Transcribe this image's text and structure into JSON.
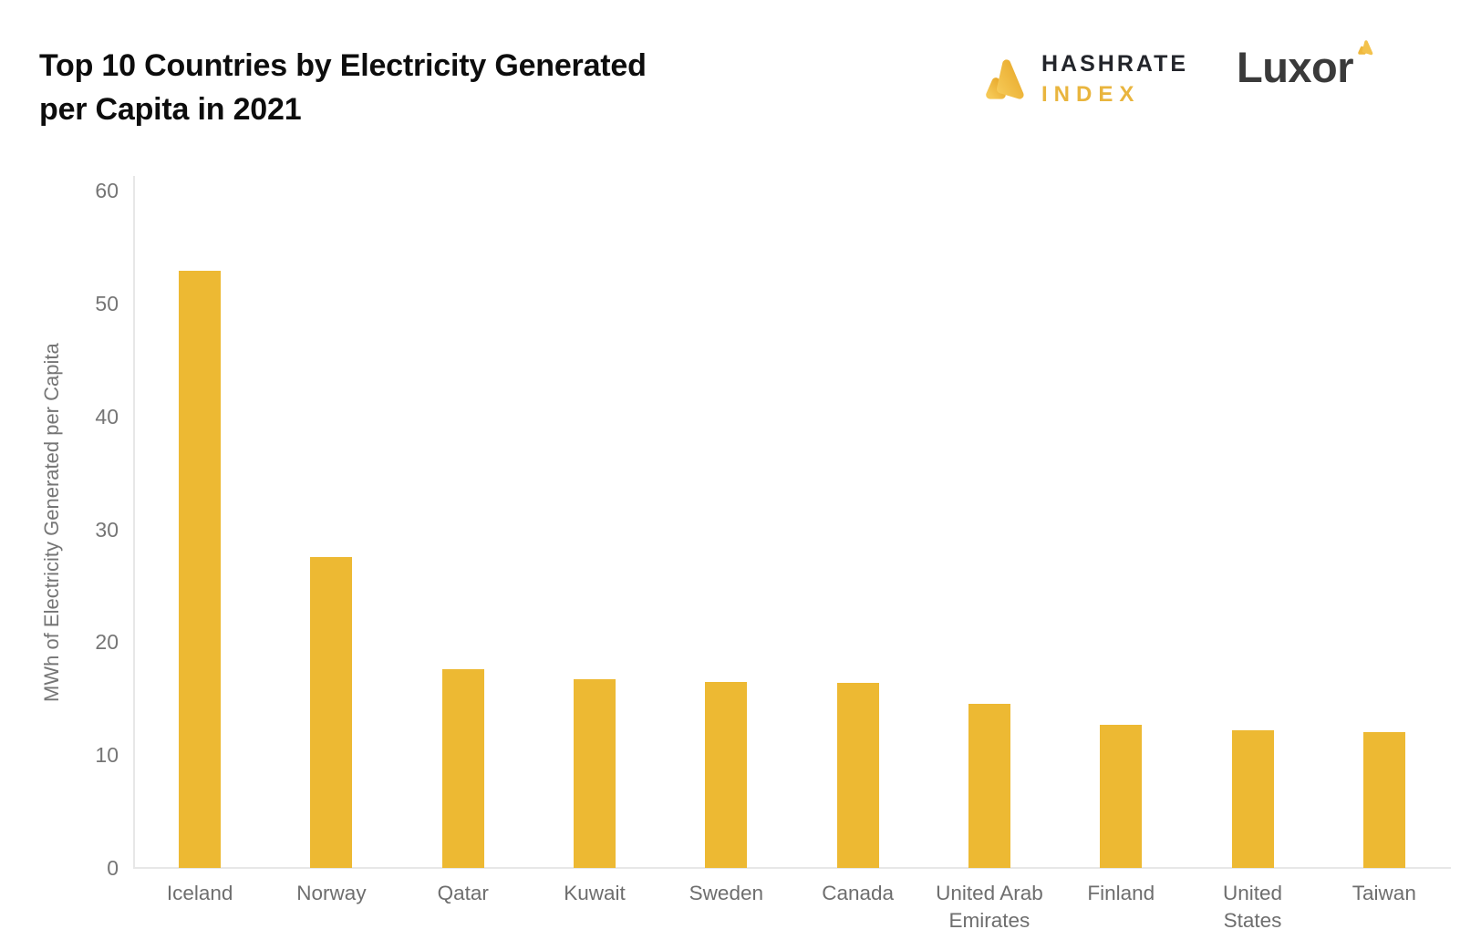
{
  "header": {
    "title_line1": "Top 10 Countries by Electricity Generated",
    "title_line2": "per Capita in 2021"
  },
  "logos": {
    "hashrate_line1": "HASHRATE",
    "hashrate_line2": "INDEX",
    "luxor": "Luxor"
  },
  "colors": {
    "bar": "#EDB933",
    "logo_gold_light": "#F5C855",
    "logo_gold_dark": "#E8A92B",
    "axis_line": "#E7E7E7",
    "tick_text": "#757575",
    "category_text": "#6E6E6E",
    "title_text": "#0D0D0D",
    "hashrate_text": "#23252B",
    "index_text": "#E9B53E",
    "luxor_text": "#3A3A3A"
  },
  "chart_data": {
    "type": "bar",
    "title": "Top 10 Countries by Electricity Generated per Capita in 2021",
    "categories": [
      "Iceland",
      "Norway",
      "Qatar",
      "Kuwait",
      "Sweden",
      "Canada",
      "United Arab Emirates",
      "Finland",
      "United States",
      "Taiwan"
    ],
    "values": [
      52.9,
      27.5,
      17.6,
      16.7,
      16.5,
      16.4,
      14.5,
      12.7,
      12.2,
      12.0
    ],
    "xlabel": "",
    "ylabel": "MWh of Electricity Generated per Capita",
    "ylim": [
      0,
      60
    ],
    "yticks": [
      0,
      10,
      20,
      30,
      40,
      50,
      60
    ],
    "grid": false,
    "legend_position": "none",
    "bar_color": "#EDB933"
  }
}
